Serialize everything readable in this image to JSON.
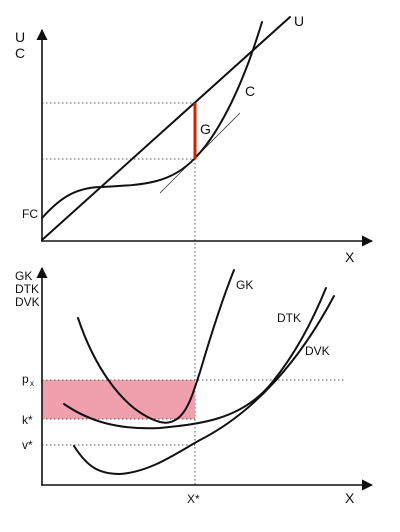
{
  "top_panel": {
    "y_axis_label_1": "U",
    "y_axis_label_2": "C",
    "x_axis_label": "X",
    "curve_U_label": "U",
    "curve_C_label": "C",
    "gap_label": "G",
    "fixed_cost_label": "FC"
  },
  "bottom_panel": {
    "y_axis_label_1": "GK",
    "y_axis_label_2": "DTK",
    "y_axis_label_3": "DVK",
    "x_axis_label": "X",
    "curve_GK_label": "GK",
    "curve_DTK_label": "DTK",
    "curve_DVK_label": "DVK",
    "price_label_main": "p",
    "price_label_sub": "x",
    "k_star_label": "k*",
    "v_star_label": "v*",
    "x_star_label": "X*"
  },
  "colors": {
    "profit_area": "#f0a0ad",
    "gap_line": "#cc2200",
    "curves": "#111111"
  }
}
